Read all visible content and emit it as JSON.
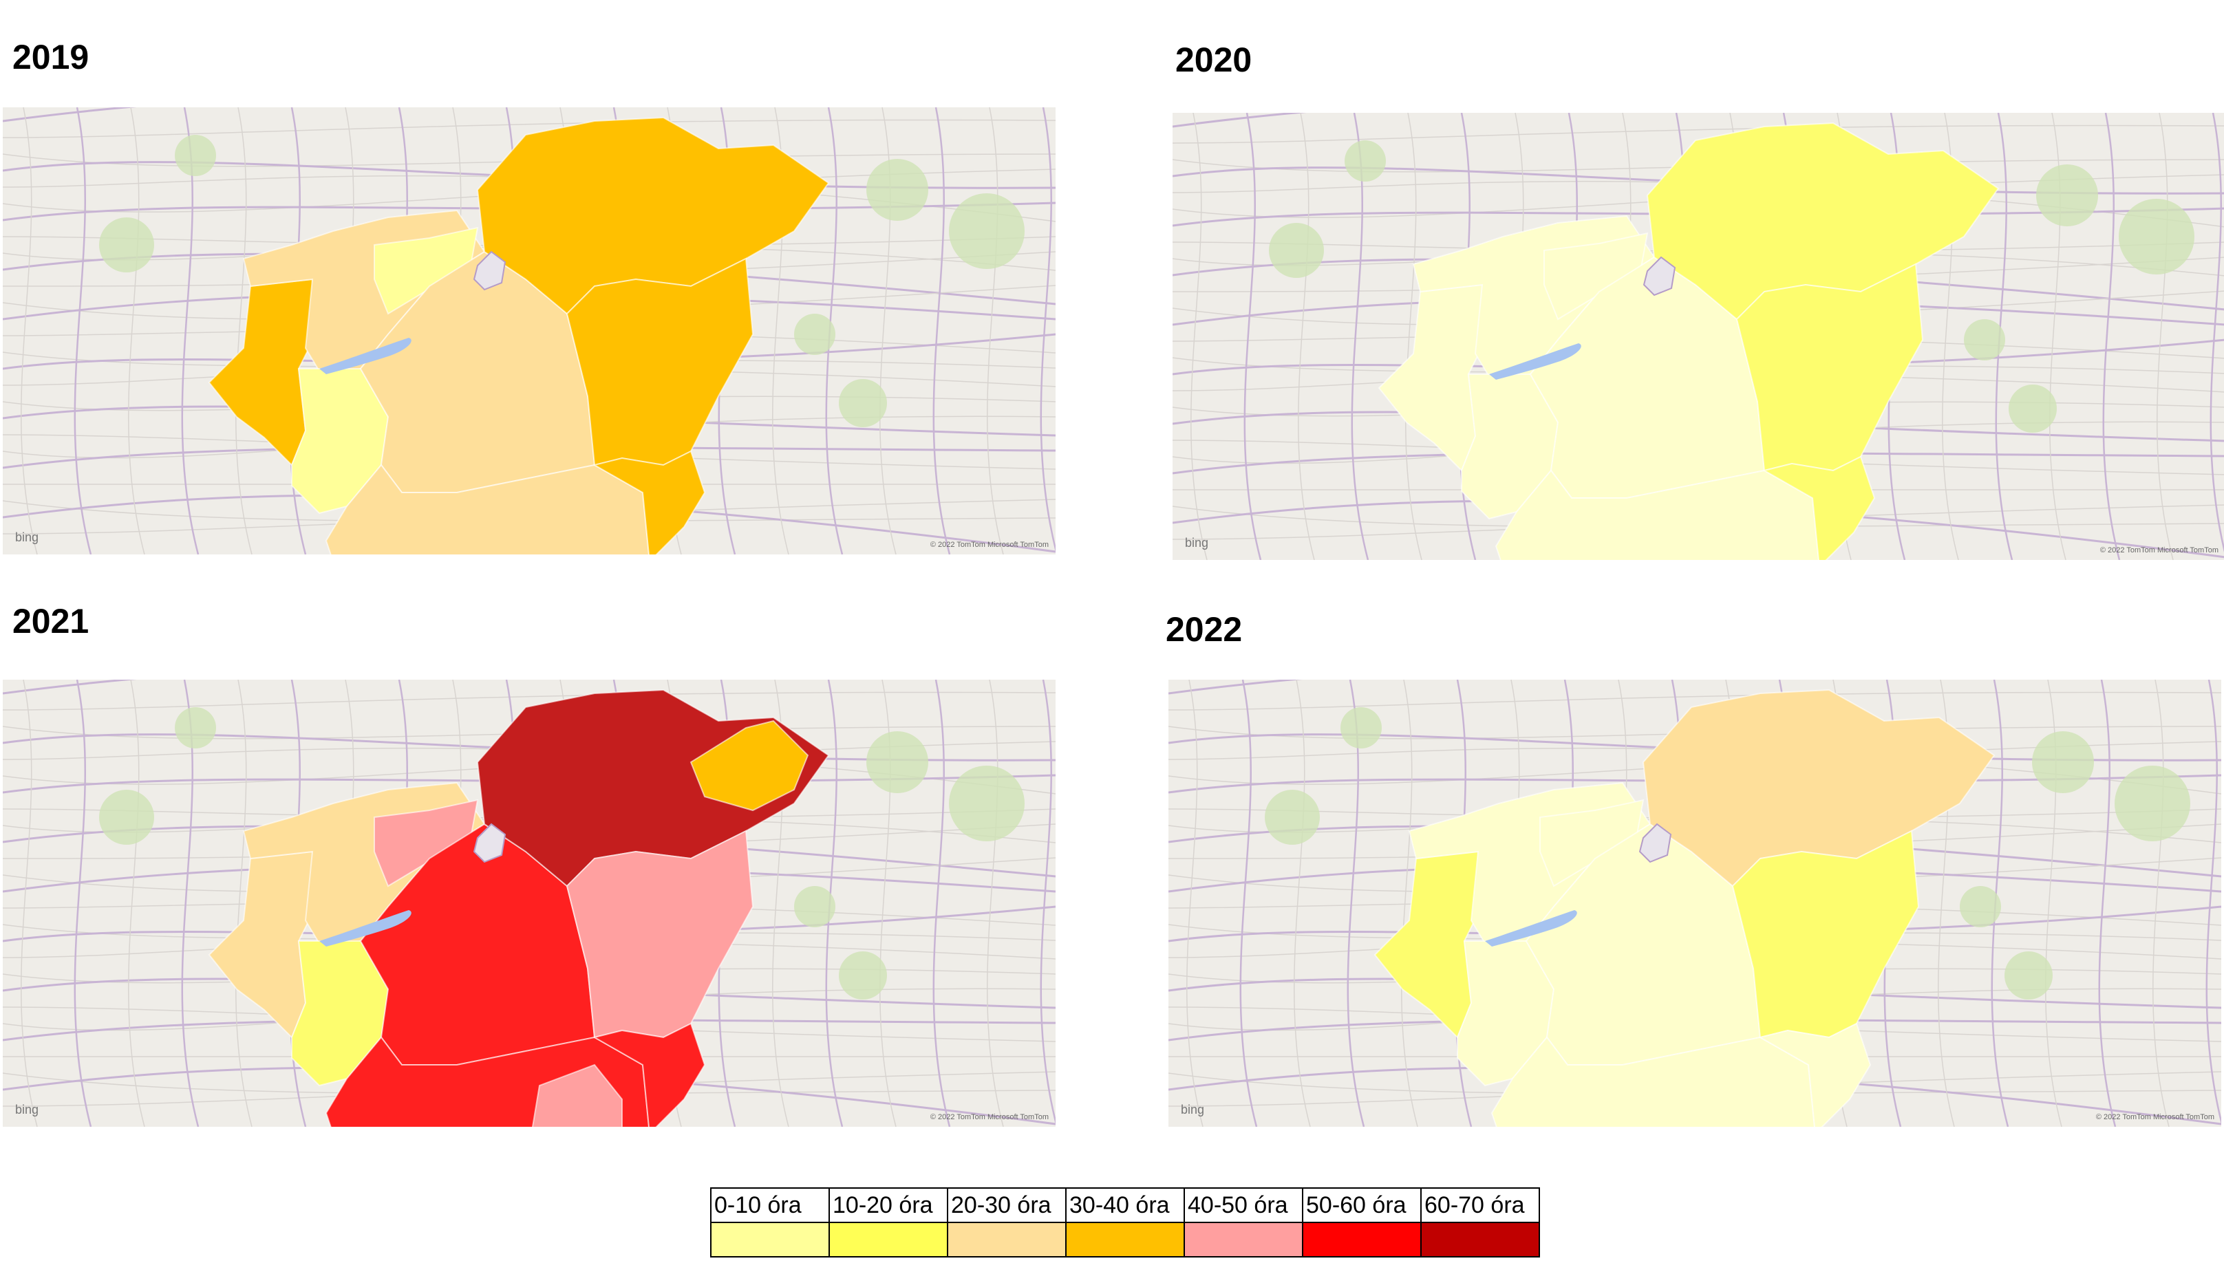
{
  "maps": [
    {
      "year": "2019",
      "regions": {
        "west": "#ffc000",
        "northwest": "#fedf9a",
        "smallNorth": "#ffff99",
        "southwest": "#ffff99",
        "center": "#fedf9a",
        "south": "#fedf9a",
        "northeast": "#ffc000",
        "east": "#ffc000",
        "southeast": "#ffc000"
      },
      "bing": "bing",
      "copyright": "© 2022 TomTom  Microsoft  TomTom"
    },
    {
      "year": "2020",
      "regions": {
        "west": "#fefecc",
        "northwest": "#fefecc",
        "smallNorth": "#fefecc",
        "southwest": "#fefecc",
        "center": "#fefecc",
        "south": "#fefecc",
        "northeast": "#fdfd6e",
        "east": "#fdfd6e",
        "southeast": "#fdfd6e"
      },
      "bing": "bing",
      "copyright": "© 2022 TomTom  Microsoft  TomTom"
    },
    {
      "year": "2021",
      "regions": {
        "west": "#fedf9a",
        "northwest": "#fedf9a",
        "smallNorth": "#ffa0a0",
        "southwest": "#fdfd6e",
        "center": "#ff2020",
        "south": "#ff2020",
        "northeast": "#c41e1e",
        "east": "#ffa0a0",
        "southeast": "#ff2020",
        "farNortheast": "#ffc000",
        "centerSouthPink": "#ffa0a0"
      },
      "bing": "bing",
      "copyright": "© 2022 TomTom  Microsoft  TomTom"
    },
    {
      "year": "2022",
      "regions": {
        "west": "#fdfd6e",
        "northwest": "#fefecc",
        "smallNorth": "#fefecc",
        "southwest": "#fefecc",
        "center": "#fefecc",
        "south": "#fefecc",
        "northeast": "#fedf9a",
        "east": "#fdfd6e",
        "southeast": "#fefecc"
      },
      "bing": "bing",
      "copyright": "© 2022 TomTom  Microsoft  TomTom"
    }
  ],
  "legend": [
    {
      "label": "0-10 óra",
      "color": "#ffff99"
    },
    {
      "label": "10-20 óra",
      "color": "#ffff55"
    },
    {
      "label": "20-30 óra",
      "color": "#fedf9a"
    },
    {
      "label": "30-40 óra",
      "color": "#ffc000"
    },
    {
      "label": "40-50 óra",
      "color": "#ff9f9f"
    },
    {
      "label": "50-60 óra",
      "color": "#ff0000"
    },
    {
      "label": "60-70 óra",
      "color": "#c00000"
    }
  ]
}
